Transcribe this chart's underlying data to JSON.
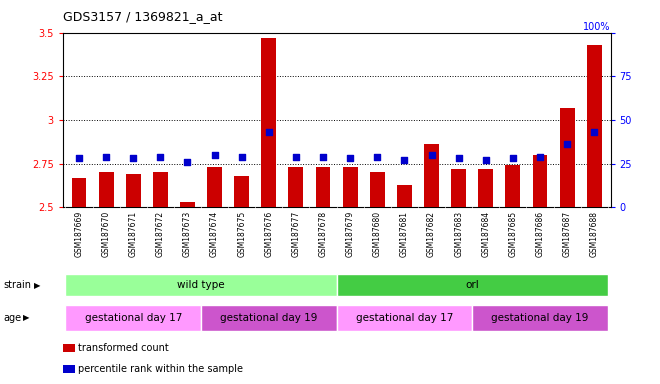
{
  "title": "GDS3157 / 1369821_a_at",
  "samples": [
    "GSM187669",
    "GSM187670",
    "GSM187671",
    "GSM187672",
    "GSM187673",
    "GSM187674",
    "GSM187675",
    "GSM187676",
    "GSM187677",
    "GSM187678",
    "GSM187679",
    "GSM187680",
    "GSM187681",
    "GSM187682",
    "GSM187683",
    "GSM187684",
    "GSM187685",
    "GSM187686",
    "GSM187687",
    "GSM187688"
  ],
  "transformed_count": [
    2.67,
    2.7,
    2.69,
    2.7,
    2.53,
    2.73,
    2.68,
    3.47,
    2.73,
    2.73,
    2.73,
    2.7,
    2.63,
    2.86,
    2.72,
    2.72,
    2.74,
    2.8,
    3.07,
    3.43
  ],
  "percentile_rank": [
    28,
    29,
    28,
    29,
    26,
    30,
    29,
    43,
    29,
    29,
    28,
    29,
    27,
    30,
    28,
    27,
    28,
    29,
    36,
    43
  ],
  "ylim_left": [
    2.5,
    3.5
  ],
  "ylim_right": [
    0,
    100
  ],
  "yticks_left": [
    2.5,
    2.75,
    3.0,
    3.25,
    3.5
  ],
  "yticks_right": [
    0,
    25,
    50,
    75,
    100
  ],
  "ytick_labels_left": [
    "2.5",
    "2.75",
    "3",
    "3.25",
    "3.5"
  ],
  "ytick_labels_right": [
    "0",
    "25",
    "50",
    "75",
    ""
  ],
  "grid_lines": [
    2.75,
    3.0,
    3.25
  ],
  "bar_color": "#cc0000",
  "dot_color": "#0000cc",
  "bar_width": 0.55,
  "strain_labels": [
    {
      "label": "wild type",
      "start": 0,
      "end": 10,
      "color": "#99ff99"
    },
    {
      "label": "orl",
      "start": 10,
      "end": 20,
      "color": "#44cc44"
    }
  ],
  "age_labels": [
    {
      "label": "gestational day 17",
      "start": 0,
      "end": 5,
      "color": "#ff99ff"
    },
    {
      "label": "gestational day 19",
      "start": 5,
      "end": 10,
      "color": "#cc55cc"
    },
    {
      "label": "gestational day 17",
      "start": 10,
      "end": 15,
      "color": "#ff99ff"
    },
    {
      "label": "gestational day 19",
      "start": 15,
      "end": 20,
      "color": "#cc55cc"
    }
  ],
  "legend_items": [
    {
      "label": "transformed count",
      "color": "#cc0000",
      "marker": "s"
    },
    {
      "label": "percentile rank within the sample",
      "color": "#0000cc",
      "marker": "s"
    }
  ],
  "strain_row_label": "strain",
  "age_row_label": "age",
  "background_color": "#ffffff",
  "plot_bg_color": "#ffffff",
  "xtick_bg_color": "#d8d8d8",
  "top_right_label": "100%"
}
